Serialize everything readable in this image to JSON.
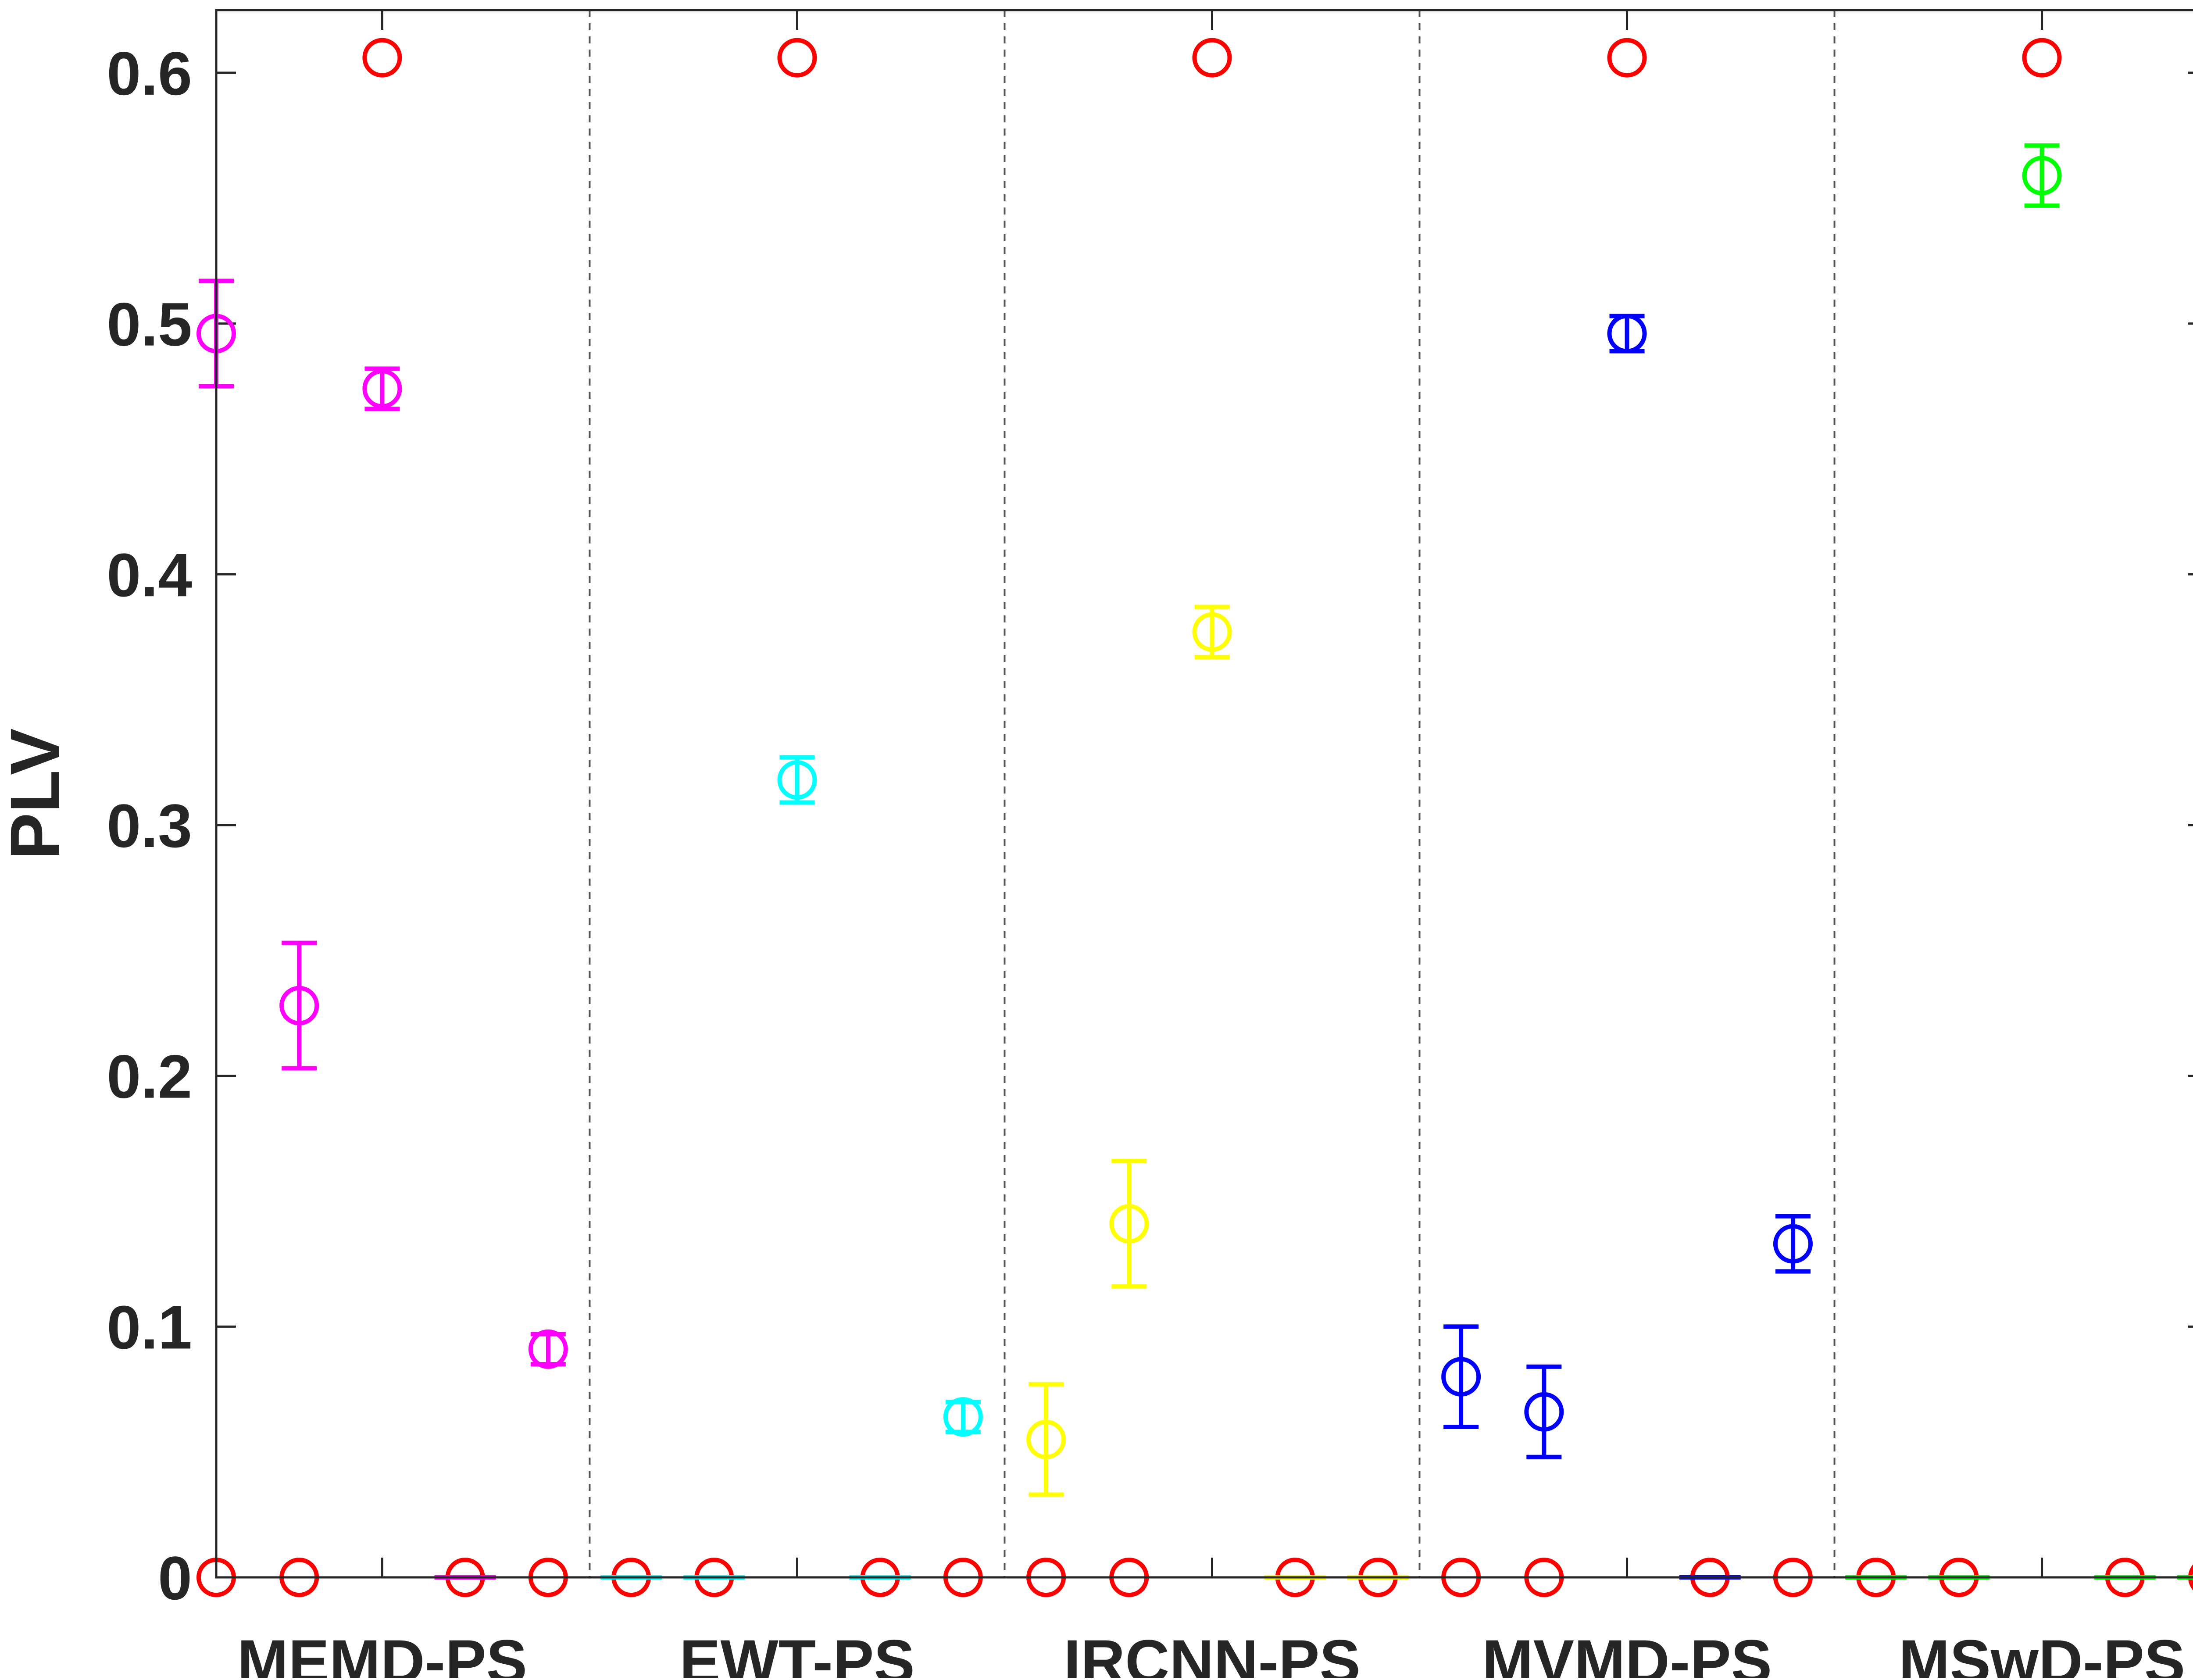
{
  "chart_data": {
    "type": "scatter",
    "title": "",
    "xlabel": "",
    "ylabel": "PLV",
    "ylim": [
      0,
      0.625
    ],
    "yticks": [
      0,
      0.1,
      0.2,
      0.3,
      0.4,
      0.5,
      0.6
    ],
    "ytick_labels": [
      "0",
      "0.1",
      "0.2",
      "0.3",
      "0.4",
      "0.5",
      "0.6"
    ],
    "grid": false,
    "legend": "none",
    "group_separator_style": "dashed",
    "groups": [
      {
        "label": "MEMD-PS",
        "color": "#ff00ff",
        "means": [
          0.496,
          0.228,
          0.474,
          0.0,
          0.091
        ],
        "errors": [
          0.021,
          0.025,
          0.008,
          0.0,
          0.006
        ]
      },
      {
        "label": "EWT-PS",
        "color": "#00ffff",
        "means": [
          0.0,
          0.0,
          0.318,
          0.0,
          0.064
        ],
        "errors": [
          0.0,
          0.0,
          0.009,
          0.0,
          0.006
        ]
      },
      {
        "label": "IRCNN-PS",
        "color": "#ffff00",
        "means": [
          0.055,
          0.141,
          0.377,
          0.0,
          0.0
        ],
        "errors": [
          0.022,
          0.025,
          0.01,
          0.0,
          0.0
        ]
      },
      {
        "label": "MVMD-PS",
        "color": "#0000ff",
        "means": [
          0.08,
          0.066,
          0.496,
          0.0,
          0.133
        ],
        "errors": [
          0.02,
          0.018,
          0.007,
          0.0,
          0.011
        ]
      },
      {
        "label": "MSwD-PS",
        "color": "#00ff00",
        "means": [
          0.0,
          0.0,
          0.559,
          0.0,
          0.0
        ],
        "errors": [
          0.0,
          0.0,
          0.012,
          0.0,
          0.0
        ]
      }
    ],
    "reference": {
      "color": "#ff0000",
      "top_value": 0.606,
      "bottom_value": 0.0,
      "top_positions": [
        3,
        8,
        13,
        18,
        23
      ],
      "bottom_positions": [
        1,
        2,
        4,
        5,
        6,
        7,
        9,
        10,
        11,
        12,
        14,
        15,
        16,
        17,
        19,
        20,
        21,
        22,
        24,
        25
      ]
    }
  }
}
